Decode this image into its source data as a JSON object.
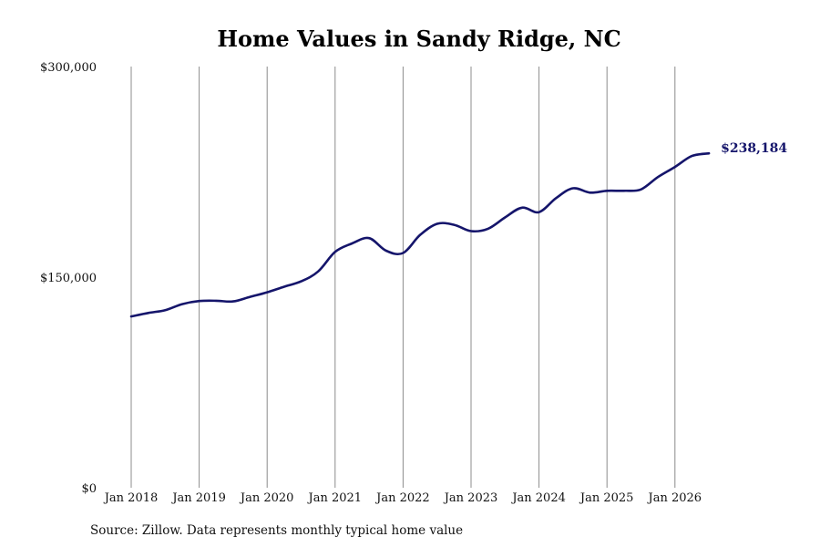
{
  "colors": {
    "line": "#15156b",
    "grid": "#8c8c8c",
    "text": "#111111"
  },
  "chart_data": {
    "type": "line",
    "title": "Home Values in Sandy Ridge, NC",
    "source": "Source: Zillow. Data represents monthly typical home value",
    "y_ticks": [
      {
        "value": 300000,
        "label": "$300,000"
      },
      {
        "value": 150000,
        "label": "$150,000"
      },
      {
        "value": 0,
        "label": "$0"
      }
    ],
    "x_ticks": [
      {
        "value": "2018-01",
        "label": "Jan 2018"
      },
      {
        "value": "2019-01",
        "label": "Jan 2019"
      },
      {
        "value": "2020-01",
        "label": "Jan 2020"
      },
      {
        "value": "2021-01",
        "label": "Jan 2021"
      },
      {
        "value": "2022-01",
        "label": "Jan 2022"
      },
      {
        "value": "2023-01",
        "label": "Jan 2023"
      },
      {
        "value": "2024-01",
        "label": "Jan 2024"
      },
      {
        "value": "2025-01",
        "label": "Jan 2025"
      },
      {
        "value": "2026-01",
        "label": "Jan 2026"
      }
    ],
    "ylim": [
      0,
      300000
    ],
    "xlim": [
      "2018-01",
      "2026-07"
    ],
    "grid": "vertical",
    "end_label": "$238,184",
    "series": [
      {
        "points": [
          [
            "2018-01",
            122000
          ],
          [
            "2018-04",
            124500
          ],
          [
            "2018-07",
            126500
          ],
          [
            "2018-10",
            130800
          ],
          [
            "2019-01",
            133000
          ],
          [
            "2019-04",
            133200
          ],
          [
            "2019-07",
            132700
          ],
          [
            "2019-10",
            136000
          ],
          [
            "2020-01",
            139200
          ],
          [
            "2020-04",
            143200
          ],
          [
            "2020-07",
            147000
          ],
          [
            "2020-10",
            154000
          ],
          [
            "2021-01",
            168000
          ],
          [
            "2021-04",
            174000
          ],
          [
            "2021-07",
            177800
          ],
          [
            "2021-10",
            168800
          ],
          [
            "2022-01",
            167200
          ],
          [
            "2022-04",
            180000
          ],
          [
            "2022-07",
            188000
          ],
          [
            "2022-10",
            187300
          ],
          [
            "2023-01",
            182800
          ],
          [
            "2023-04",
            184500
          ],
          [
            "2023-07",
            192500
          ],
          [
            "2023-10",
            199500
          ],
          [
            "2024-01",
            196300
          ],
          [
            "2024-04",
            206300
          ],
          [
            "2024-07",
            213300
          ],
          [
            "2024-10",
            210200
          ],
          [
            "2025-01",
            211500
          ],
          [
            "2025-04",
            211500
          ],
          [
            "2025-07",
            212500
          ],
          [
            "2025-10",
            221300
          ],
          [
            "2026-01",
            228500
          ],
          [
            "2026-04",
            236300
          ],
          [
            "2026-07",
            238184
          ]
        ]
      }
    ]
  }
}
